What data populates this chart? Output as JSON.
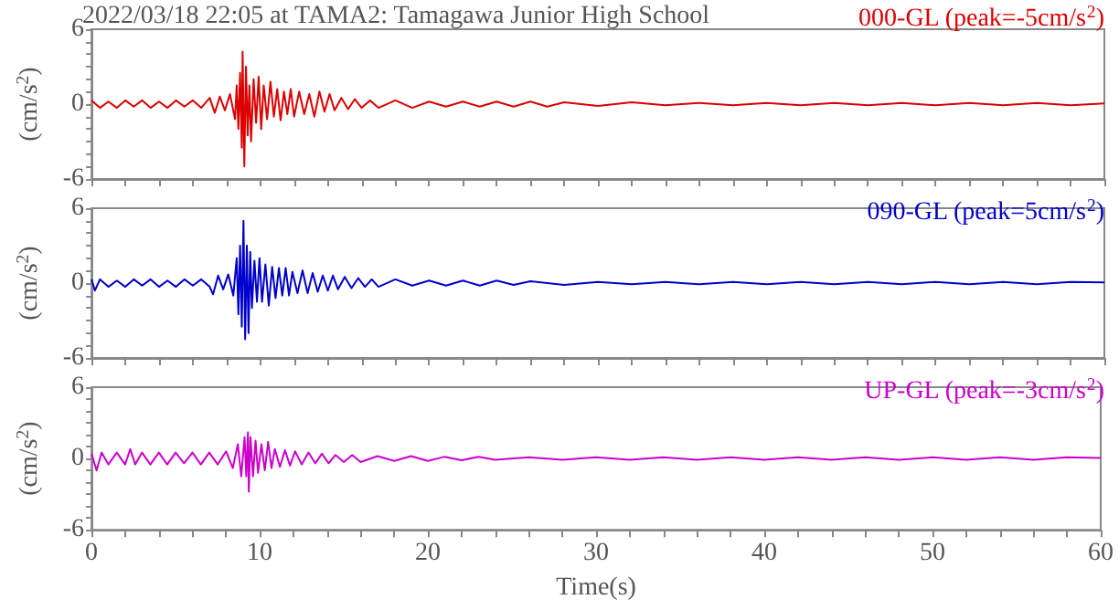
{
  "chart_data": [
    {
      "type": "line",
      "title": "2022/03/18 22:05 at TAMA2: Tamagawa Junior High School",
      "ylabel": "(cm/s$^{2}$)",
      "legend": "top right",
      "tick_labels": "y",
      "grid": false,
      "xlim": [
        0,
        60
      ],
      "xticks": [
        0,
        {
          "value": 2,
          "label": null
        },
        {
          "value": 4,
          "label": null
        },
        {
          "value": 6,
          "label": null
        },
        {
          "value": 8,
          "label": null
        },
        10,
        {
          "value": 12,
          "label": null
        },
        {
          "value": 14,
          "label": null
        },
        {
          "value": 16,
          "label": null
        },
        {
          "value": 18,
          "label": null
        },
        20,
        {
          "value": 22,
          "label": null
        },
        {
          "value": 24,
          "label": null
        },
        {
          "value": 26,
          "label": null
        },
        {
          "value": 28,
          "label": null
        },
        30,
        {
          "value": 32,
          "label": null
        },
        {
          "value": 34,
          "label": null
        },
        {
          "value": 36,
          "label": null
        },
        {
          "value": 38,
          "label": null
        },
        40,
        {
          "value": 42,
          "label": null
        },
        {
          "value": 44,
          "label": null
        },
        {
          "value": 46,
          "label": null
        },
        {
          "value": 48,
          "label": null
        },
        50,
        {
          "value": 52,
          "label": null
        },
        {
          "value": 54,
          "label": null
        },
        {
          "value": 56,
          "label": null
        },
        {
          "value": 58,
          "label": null
        },
        60
      ],
      "ylim": [
        -6,
        6
      ],
      "yticks": [
        -6,
        {
          "value": -5,
          "label": null
        },
        {
          "value": -4,
          "label": null
        },
        {
          "value": -3,
          "label": null
        },
        {
          "value": -2,
          "label": null
        },
        {
          "value": -1,
          "label": null
        },
        0,
        {
          "value": 1,
          "label": null
        },
        {
          "value": 2,
          "label": null
        },
        {
          "value": 3,
          "label": null
        },
        {
          "value": 4,
          "label": null
        },
        {
          "value": 5,
          "label": null
        },
        6
      ],
      "series": [
        {
          "name": "000-GL (peak=-5cm/s$^{2}$)",
          "color": "#dd0000",
          "x": [
            0,
            0.5,
            1,
            1.5,
            2,
            2.5,
            3,
            3.5,
            4,
            4.5,
            5,
            5.5,
            6,
            6.5,
            7,
            7.3,
            7.6,
            7.9,
            8.2,
            8.5,
            8.6,
            8.7,
            8.8,
            8.9,
            8.95,
            9.05,
            9.15,
            9.25,
            9.35,
            9.45,
            9.6,
            9.75,
            9.9,
            10.05,
            10.2,
            10.4,
            10.6,
            10.8,
            11,
            11.2,
            11.4,
            11.6,
            11.8,
            12,
            12.3,
            12.6,
            12.9,
            13.2,
            13.5,
            13.8,
            14.1,
            14.4,
            14.8,
            15.2,
            15.6,
            16,
            16.5,
            17,
            18,
            19,
            20,
            21,
            22,
            23,
            24,
            25,
            26,
            27,
            28,
            30,
            32,
            34,
            36,
            38,
            40,
            42,
            44,
            46,
            48,
            50,
            52,
            54,
            56,
            58,
            60
          ],
          "values": [
            0.3,
            -0.3,
            0.2,
            -0.3,
            0.3,
            -0.2,
            0.3,
            -0.3,
            0.2,
            -0.3,
            0.3,
            -0.2,
            0.3,
            -0.3,
            0.5,
            -0.7,
            0.6,
            -0.5,
            0.8,
            -1.2,
            1.5,
            -2,
            2.5,
            -3.5,
            4.2,
            -5,
            3,
            -2.5,
            1.5,
            -3,
            2,
            -1.5,
            2.2,
            -2,
            1.5,
            -1.2,
            1.8,
            -1,
            1.2,
            -1.3,
            1,
            -0.8,
            1.2,
            -1,
            1,
            -0.8,
            0.8,
            -1,
            1,
            -0.6,
            0.8,
            -0.5,
            0.5,
            -0.4,
            0.4,
            -0.3,
            0.3,
            -0.3,
            0.3,
            -0.3,
            0.2,
            -0.2,
            0.2,
            -0.2,
            0.2,
            -0.2,
            0.2,
            -0.2,
            0.15,
            -0.15,
            0.15,
            -0.1,
            0.1,
            -0.1,
            0.1,
            -0.1,
            0.1,
            -0.1,
            0.1,
            -0.1,
            0.1,
            -0.1,
            0.1,
            -0.1,
            0.05
          ]
        }
      ]
    },
    {
      "type": "line",
      "ylabel": "(cm/s$^{2}$)",
      "legend": "top right",
      "tick_labels": "y",
      "grid": false,
      "xlim": [
        0,
        60
      ],
      "xticks": [
        0,
        {
          "value": 2,
          "label": null
        },
        {
          "value": 4,
          "label": null
        },
        {
          "value": 6,
          "label": null
        },
        {
          "value": 8,
          "label": null
        },
        10,
        {
          "value": 12,
          "label": null
        },
        {
          "value": 14,
          "label": null
        },
        {
          "value": 16,
          "label": null
        },
        {
          "value": 18,
          "label": null
        },
        20,
        {
          "value": 22,
          "label": null
        },
        {
          "value": 24,
          "label": null
        },
        {
          "value": 26,
          "label": null
        },
        {
          "value": 28,
          "label": null
        },
        30,
        {
          "value": 32,
          "label": null
        },
        {
          "value": 34,
          "label": null
        },
        {
          "value": 36,
          "label": null
        },
        {
          "value": 38,
          "label": null
        },
        40,
        {
          "value": 42,
          "label": null
        },
        {
          "value": 44,
          "label": null
        },
        {
          "value": 46,
          "label": null
        },
        {
          "value": 48,
          "label": null
        },
        50,
        {
          "value": 52,
          "label": null
        },
        {
          "value": 54,
          "label": null
        },
        {
          "value": 56,
          "label": null
        },
        {
          "value": 58,
          "label": null
        },
        60
      ],
      "ylim": [
        -6,
        6
      ],
      "yticks": [
        -6,
        {
          "value": -5,
          "label": null
        },
        {
          "value": -4,
          "label": null
        },
        {
          "value": -3,
          "label": null
        },
        {
          "value": -2,
          "label": null
        },
        {
          "value": -1,
          "label": null
        },
        0,
        {
          "value": 1,
          "label": null
        },
        {
          "value": 2,
          "label": null
        },
        {
          "value": 3,
          "label": null
        },
        {
          "value": 4,
          "label": null
        },
        {
          "value": 5,
          "label": null
        },
        6
      ],
      "series": [
        {
          "name": "090-GL (peak=5cm/s$^{2}$)",
          "color": "#0000cc",
          "x": [
            0,
            0.2,
            0.5,
            1,
            1.5,
            2,
            2.5,
            3,
            3.5,
            4,
            4.5,
            5,
            5.5,
            6,
            6.5,
            7,
            7.2,
            7.5,
            7.8,
            8.1,
            8.4,
            8.6,
            8.7,
            8.8,
            8.9,
            9,
            9.1,
            9.2,
            9.3,
            9.4,
            9.5,
            9.65,
            9.8,
            9.95,
            10.1,
            10.3,
            10.5,
            10.7,
            10.9,
            11.1,
            11.3,
            11.5,
            11.7,
            11.9,
            12.2,
            12.5,
            12.8,
            13.1,
            13.4,
            13.7,
            14,
            14.3,
            14.6,
            15,
            15.4,
            15.8,
            16.2,
            16.6,
            17,
            18,
            19,
            20,
            21,
            22,
            23,
            24,
            25,
            26,
            28,
            30,
            32,
            34,
            36,
            38,
            40,
            42,
            44,
            46,
            48,
            50,
            52,
            54,
            56,
            58,
            60
          ],
          "values": [
            0.3,
            -0.6,
            0.3,
            -0.3,
            0.2,
            -0.3,
            0.3,
            -0.2,
            0.3,
            -0.3,
            0.2,
            -0.3,
            0.3,
            -0.2,
            0.3,
            -0.3,
            -0.9,
            0.6,
            -0.5,
            0.7,
            -1,
            2,
            -2.5,
            3,
            -3.5,
            5,
            -4.5,
            3,
            -4,
            2.5,
            -2,
            1.8,
            -1.5,
            2,
            -1.5,
            1.5,
            -1.8,
            1.3,
            -1.2,
            1.2,
            -1,
            1.2,
            -1,
            0.9,
            -0.8,
            1,
            -0.8,
            0.8,
            -0.7,
            0.6,
            -0.6,
            0.6,
            -0.5,
            0.5,
            -0.4,
            0.4,
            -0.3,
            0.3,
            -0.3,
            0.3,
            -0.2,
            0.2,
            -0.2,
            0.2,
            -0.2,
            0.2,
            -0.15,
            0.15,
            -0.15,
            0.1,
            -0.1,
            0.1,
            -0.1,
            0.1,
            -0.1,
            0.1,
            -0.1,
            0.1,
            -0.1,
            0.1,
            -0.1,
            0.1,
            -0.1,
            0.1,
            0.05
          ]
        }
      ]
    },
    {
      "type": "line",
      "ylabel": "(cm/s$^{2}$)",
      "xlabel": "Time(s)",
      "legend": "top right",
      "grid": false,
      "xlim": [
        0,
        60
      ],
      "xticks": [
        0,
        {
          "value": 2,
          "label": null
        },
        {
          "value": 4,
          "label": null
        },
        {
          "value": 6,
          "label": null
        },
        {
          "value": 8,
          "label": null
        },
        10,
        {
          "value": 12,
          "label": null
        },
        {
          "value": 14,
          "label": null
        },
        {
          "value": 16,
          "label": null
        },
        {
          "value": 18,
          "label": null
        },
        20,
        {
          "value": 22,
          "label": null
        },
        {
          "value": 24,
          "label": null
        },
        {
          "value": 26,
          "label": null
        },
        {
          "value": 28,
          "label": null
        },
        30,
        {
          "value": 32,
          "label": null
        },
        {
          "value": 34,
          "label": null
        },
        {
          "value": 36,
          "label": null
        },
        {
          "value": 38,
          "label": null
        },
        40,
        {
          "value": 42,
          "label": null
        },
        {
          "value": 44,
          "label": null
        },
        {
          "value": 46,
          "label": null
        },
        {
          "value": 48,
          "label": null
        },
        50,
        {
          "value": 52,
          "label": null
        },
        {
          "value": 54,
          "label": null
        },
        {
          "value": 56,
          "label": null
        },
        {
          "value": 58,
          "label": null
        },
        60
      ],
      "ylim": [
        -6,
        6
      ],
      "yticks": [
        -6,
        {
          "value": -5,
          "label": null
        },
        {
          "value": -4,
          "label": null
        },
        {
          "value": -3,
          "label": null
        },
        {
          "value": -2,
          "label": null
        },
        {
          "value": -1,
          "label": null
        },
        0,
        {
          "value": 1,
          "label": null
        },
        {
          "value": 2,
          "label": null
        },
        {
          "value": 3,
          "label": null
        },
        {
          "value": 4,
          "label": null
        },
        {
          "value": 5,
          "label": null
        },
        6
      ],
      "series": [
        {
          "name": "UP-GL (peak=-3cm/s$^{2}$)",
          "color": "#cc00cc",
          "x": [
            0,
            0.3,
            0.6,
            1,
            1.5,
            2,
            2.3,
            2.6,
            3,
            3.5,
            4,
            4.5,
            5,
            5.5,
            6,
            6.5,
            7,
            7.5,
            8,
            8.4,
            8.7,
            8.9,
            9.1,
            9.2,
            9.3,
            9.35,
            9.45,
            9.6,
            9.75,
            9.9,
            10.1,
            10.3,
            10.5,
            10.7,
            10.9,
            11.2,
            11.5,
            11.8,
            12.1,
            12.5,
            12.9,
            13.3,
            13.7,
            14.1,
            14.5,
            15,
            15.5,
            16,
            17,
            18,
            19,
            20,
            21,
            22,
            23,
            24,
            26,
            28,
            30,
            32,
            34,
            36,
            38,
            40,
            42,
            44,
            46,
            48,
            50,
            52,
            54,
            56,
            58,
            60
          ],
          "values": [
            0.4,
            -1,
            0.5,
            -0.5,
            0.5,
            -0.5,
            0.8,
            -0.5,
            0.5,
            -0.5,
            0.5,
            -0.5,
            0.5,
            -0.4,
            0.5,
            -0.5,
            0.5,
            -0.5,
            0.6,
            -0.8,
            1.2,
            -1.5,
            1.8,
            -1.5,
            2.2,
            -2.8,
            1.8,
            -1.5,
            1.5,
            -1.2,
            1.2,
            -1,
            1.4,
            -0.8,
            0.8,
            -0.7,
            0.7,
            -0.6,
            0.6,
            -0.5,
            0.5,
            -0.4,
            0.4,
            -0.4,
            0.3,
            -0.3,
            0.3,
            -0.3,
            0.2,
            -0.2,
            0.2,
            -0.2,
            0.15,
            -0.15,
            0.15,
            -0.1,
            0.1,
            -0.1,
            0.1,
            -0.1,
            0.1,
            -0.1,
            0.1,
            -0.1,
            0.1,
            -0.1,
            0.1,
            -0.1,
            0.1,
            -0.1,
            0.1,
            -0.1,
            0.1,
            0.05
          ]
        }
      ]
    }
  ]
}
